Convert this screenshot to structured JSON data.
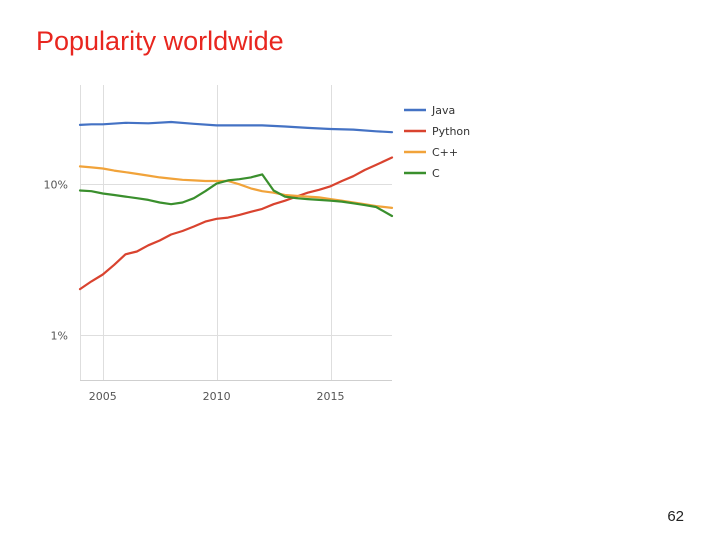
{
  "slide": {
    "title": "Popularity worldwide",
    "page_number": "62"
  },
  "chart_data": {
    "type": "line",
    "title": "Popularity worldwide",
    "xlabel": "",
    "ylabel": "",
    "y_scale": "log",
    "ylim": [
      0.5,
      45
    ],
    "xlim": [
      2004,
      2017.7
    ],
    "x_ticks": [
      2005,
      2010,
      2015
    ],
    "x_tick_labels": [
      "2005",
      "2010",
      "2015"
    ],
    "y_ticks": [
      1,
      10
    ],
    "y_tick_labels": [
      "1%",
      "10%"
    ],
    "grid": true,
    "legend_position": "top-right",
    "series": [
      {
        "name": "Java",
        "color": "#4472c4",
        "x": [
          2004.0,
          2004.5,
          2005.0,
          2006.0,
          2007.0,
          2008.0,
          2009.0,
          2010.0,
          2011.0,
          2012.0,
          2013.0,
          2014.0,
          2015.0,
          2016.0,
          2017.0,
          2017.7
        ],
        "y": [
          24.5,
          24.7,
          24.7,
          25.3,
          25.1,
          25.6,
          24.9,
          24.3,
          24.3,
          24.3,
          23.9,
          23.4,
          23.0,
          22.8,
          22.2,
          21.9
        ]
      },
      {
        "name": "Python",
        "color": "#d9432f",
        "x": [
          2004.0,
          2004.5,
          2005.0,
          2005.5,
          2006.0,
          2006.5,
          2007.0,
          2007.5,
          2008.0,
          2008.5,
          2009.0,
          2009.5,
          2010.0,
          2010.5,
          2011.0,
          2011.5,
          2012.0,
          2012.5,
          2013.0,
          2013.5,
          2014.0,
          2014.5,
          2015.0,
          2015.5,
          2016.0,
          2016.5,
          2017.0,
          2017.7
        ],
        "y": [
          2.0,
          2.25,
          2.5,
          2.9,
          3.4,
          3.55,
          3.9,
          4.2,
          4.6,
          4.85,
          5.2,
          5.6,
          5.85,
          5.95,
          6.2,
          6.5,
          6.8,
          7.3,
          7.7,
          8.2,
          8.7,
          9.1,
          9.6,
          10.4,
          11.2,
          12.3,
          13.3,
          14.9
        ]
      },
      {
        "name": "C++",
        "color": "#f1a33a",
        "x": [
          2004.0,
          2004.5,
          2005.0,
          2005.5,
          2006.0,
          2006.5,
          2007.0,
          2007.5,
          2008.0,
          2008.5,
          2009.0,
          2009.5,
          2010.0,
          2010.5,
          2011.0,
          2011.5,
          2012.0,
          2012.5,
          2013.0,
          2013.5,
          2014.0,
          2014.5,
          2015.0,
          2015.5,
          2016.0,
          2016.5,
          2017.0,
          2017.7
        ],
        "y": [
          13.0,
          12.8,
          12.6,
          12.2,
          11.9,
          11.6,
          11.3,
          11.0,
          10.8,
          10.6,
          10.5,
          10.4,
          10.4,
          10.4,
          9.9,
          9.3,
          8.9,
          8.7,
          8.4,
          8.3,
          8.2,
          8.1,
          7.9,
          7.7,
          7.5,
          7.3,
          7.1,
          6.9
        ]
      },
      {
        "name": "C",
        "color": "#3a8f2d",
        "x": [
          2004.0,
          2004.5,
          2005.0,
          2005.5,
          2006.0,
          2006.5,
          2007.0,
          2007.5,
          2008.0,
          2008.5,
          2009.0,
          2009.5,
          2010.0,
          2010.5,
          2011.0,
          2011.5,
          2012.0,
          2012.5,
          2013.0,
          2013.5,
          2014.0,
          2014.5,
          2015.0,
          2015.5,
          2016.0,
          2016.5,
          2017.0,
          2017.7
        ],
        "y": [
          9.0,
          8.9,
          8.6,
          8.4,
          8.2,
          8.0,
          7.8,
          7.5,
          7.3,
          7.5,
          8.0,
          8.9,
          10.0,
          10.5,
          10.7,
          11.0,
          11.5,
          9.0,
          8.2,
          8.0,
          7.9,
          7.8,
          7.7,
          7.6,
          7.4,
          7.2,
          7.0,
          6.1
        ]
      }
    ]
  }
}
